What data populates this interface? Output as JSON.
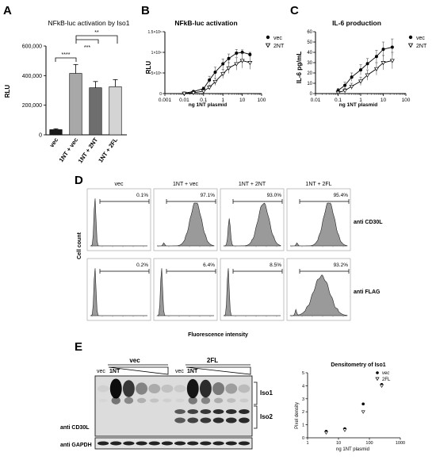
{
  "panels": {
    "A": {
      "letter": "A",
      "title": "NFkB-luc activation by Iso1",
      "ylabel": "RLU",
      "ylim": [
        0,
        600000
      ],
      "yticks": [
        "0",
        "200,000",
        "400,000",
        "600,000"
      ],
      "significance": [
        "****",
        "***",
        "**"
      ]
    },
    "B": {
      "letter": "B",
      "title": "NFkB-luc activation",
      "ylabel": "RLU",
      "xlabel": "ng 1NT plasmid",
      "xticks": [
        "0.001",
        "0.01",
        "0.1",
        "1",
        "10",
        "100"
      ],
      "yticks": [
        "0",
        "5×10⁵",
        "1×10⁶",
        "1.5×10⁶"
      ]
    },
    "C": {
      "letter": "C",
      "title": "IL-6 production",
      "ylabel": "IL-6 pg/mL",
      "xlabel": "ng 1NT plasmid",
      "xticks": [
        "0.01",
        "0.1",
        "1",
        "10",
        "100"
      ],
      "yticks": [
        "0",
        "10",
        "20",
        "30",
        "40",
        "50",
        "60"
      ]
    },
    "D": {
      "letter": "D",
      "ylabel": "Cell count",
      "xlabel": "Fluorescence intensity",
      "columns": [
        "vec",
        "1NT + vec",
        "1NT + 2NT",
        "1NT + 2FL"
      ],
      "rows": [
        "anti CD30L",
        "anti FLAG"
      ],
      "percentages": [
        [
          "0.1%",
          "97.1%",
          "93.0%",
          "95.4%"
        ],
        [
          "0.2%",
          "6.4%",
          "8.5%",
          "93.2%"
        ]
      ]
    },
    "E": {
      "letter": "E",
      "groups": [
        "vec",
        "2FL"
      ],
      "lane_labels": [
        "vec",
        "1NT"
      ],
      "band_labels": [
        "Iso1",
        "Iso2"
      ],
      "blot_labels": [
        "anti CD30L",
        "anti GAPDH"
      ],
      "densitometry": {
        "title": "Densitometry of Iso1",
        "ylabel": "Pixel density",
        "xlabel": "ng 1NT plasmid",
        "xticks": [
          "1",
          "10",
          "100",
          "1000"
        ],
        "yticks": [
          "0",
          "1",
          "2",
          "3",
          "4",
          "5"
        ]
      }
    }
  },
  "chart_data": [
    {
      "id": "A",
      "type": "bar",
      "title": "NFkB-luc activation by Iso1",
      "categories": [
        "vec",
        "1NT + vec",
        "1NT + 2NT",
        "1NT + 2FL"
      ],
      "values": [
        35000,
        415000,
        318000,
        325000
      ],
      "errors": [
        6000,
        60000,
        42000,
        48000
      ],
      "colors": [
        "#1a1a1a",
        "#a8a8a8",
        "#6e6e6e",
        "#d4d4d4"
      ],
      "ylabel": "RLU",
      "ylim": [
        0,
        600000
      ]
    },
    {
      "id": "B",
      "type": "line",
      "xscale": "log",
      "title": "NFkB-luc activation",
      "xlabel": "ng 1NT plasmid",
      "ylabel": "RLU",
      "xlim": [
        0.001,
        100
      ],
      "ylim": [
        0,
        1500000
      ],
      "series": [
        {
          "name": "vec",
          "marker": "circle",
          "x": [
            0.01,
            0.03,
            0.1,
            0.2,
            0.4,
            1,
            2,
            5,
            10,
            25
          ],
          "y": [
            10000,
            50000,
            120000,
            330000,
            520000,
            720000,
            850000,
            980000,
            1000000,
            950000
          ],
          "err": [
            10000,
            15000,
            40000,
            90000,
            120000,
            120000,
            110000,
            90000,
            60000,
            50000
          ]
        },
        {
          "name": "2NT",
          "marker": "triangle-down",
          "x": [
            0.01,
            0.03,
            0.1,
            0.2,
            0.4,
            1,
            2,
            5,
            10,
            25
          ],
          "y": [
            5000,
            20000,
            60000,
            150000,
            290000,
            480000,
            620000,
            720000,
            800000,
            750000
          ],
          "err": [
            5000,
            10000,
            30000,
            60000,
            90000,
            110000,
            130000,
            150000,
            180000,
            160000
          ]
        }
      ]
    },
    {
      "id": "C",
      "type": "line",
      "xscale": "log",
      "title": "IL-6 production",
      "xlabel": "ng 1NT plasmid",
      "ylabel": "IL-6 pg/mL",
      "xlim": [
        0.01,
        100
      ],
      "ylim": [
        0,
        60
      ],
      "series": [
        {
          "name": "vec",
          "marker": "circle",
          "x": [
            0.1,
            0.2,
            0.4,
            1,
            2,
            5,
            10,
            25
          ],
          "y": [
            3,
            8,
            16,
            23,
            29,
            36,
            43,
            45
          ],
          "err": [
            2,
            3,
            4,
            5,
            5,
            6,
            7,
            8
          ]
        },
        {
          "name": "2NT",
          "marker": "triangle-down",
          "x": [
            0.1,
            0.2,
            0.4,
            1,
            2,
            5,
            10,
            25
          ],
          "y": [
            1,
            3,
            7,
            12,
            18,
            24,
            30,
            32
          ],
          "err": [
            1,
            2,
            3,
            4,
            5,
            6,
            7,
            8
          ]
        }
      ]
    },
    {
      "id": "E-densitometry",
      "type": "scatter",
      "xscale": "log",
      "title": "Densitometry of Iso1",
      "xlabel": "ng 1NT plasmid",
      "ylabel": "Pixel density",
      "xlim": [
        1,
        1000
      ],
      "ylim": [
        0,
        5
      ],
      "series": [
        {
          "name": "vec",
          "marker": "circle",
          "x": [
            4,
            16,
            63,
            250
          ],
          "y": [
            0.5,
            0.7,
            2.6,
            4.1
          ]
        },
        {
          "name": "2FL",
          "marker": "triangle-down",
          "x": [
            4,
            16,
            63,
            250
          ],
          "y": [
            0.4,
            0.6,
            2.0,
            4.0
          ]
        }
      ]
    }
  ]
}
